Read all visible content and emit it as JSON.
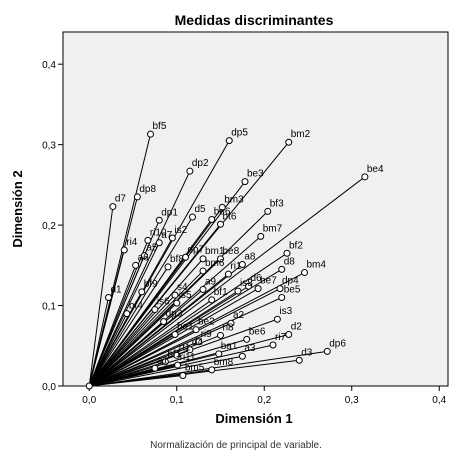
{
  "chart_data": {
    "type": "scatter",
    "title": "Medidas discriminantes",
    "xlabel": "Dimensión 1",
    "ylabel": "Dimensión 2",
    "footnote": "Normalización de principal de variable.",
    "xlim": [
      -0.03,
      0.41
    ],
    "ylim": [
      0.0,
      0.44
    ],
    "xticks": [
      0.0,
      0.1,
      0.2,
      0.3,
      0.4
    ],
    "yticks": [
      0.0,
      0.1,
      0.2,
      0.3,
      0.4
    ],
    "tick_labels_x": [
      "0,0",
      "0,1",
      "0,2",
      "0,3",
      "0,4"
    ],
    "tick_labels_y": [
      "0,0",
      "0,1",
      "0,2",
      "0,3",
      "0,4"
    ],
    "points": [
      {
        "label": "bf5",
        "x": 0.07,
        "y": 0.313
      },
      {
        "label": "dp5",
        "x": 0.16,
        "y": 0.305
      },
      {
        "label": "bm2",
        "x": 0.228,
        "y": 0.303
      },
      {
        "label": "be4",
        "x": 0.315,
        "y": 0.26
      },
      {
        "label": "dp2",
        "x": 0.115,
        "y": 0.267
      },
      {
        "label": "be3",
        "x": 0.178,
        "y": 0.254
      },
      {
        "label": "dp8",
        "x": 0.055,
        "y": 0.235
      },
      {
        "label": "d7",
        "x": 0.027,
        "y": 0.223
      },
      {
        "label": "bm3",
        "x": 0.152,
        "y": 0.222
      },
      {
        "label": "bf3",
        "x": 0.204,
        "y": 0.217
      },
      {
        "label": "d5",
        "x": 0.118,
        "y": 0.21
      },
      {
        "label": "be6",
        "x": 0.14,
        "y": 0.207
      },
      {
        "label": "dp1",
        "x": 0.08,
        "y": 0.206
      },
      {
        "label": "bt6",
        "x": 0.15,
        "y": 0.201
      },
      {
        "label": "ri10",
        "x": 0.067,
        "y": 0.181
      },
      {
        "label": "bm7",
        "x": 0.196,
        "y": 0.186
      },
      {
        "label": "is2",
        "x": 0.095,
        "y": 0.184
      },
      {
        "label": "a7",
        "x": 0.08,
        "y": 0.178
      },
      {
        "label": "ri4",
        "x": 0.04,
        "y": 0.169
      },
      {
        "label": "bf2",
        "x": 0.226,
        "y": 0.165
      },
      {
        "label": "a5",
        "x": 0.063,
        "y": 0.162
      },
      {
        "label": "dp7",
        "x": 0.11,
        "y": 0.16
      },
      {
        "label": "bm1",
        "x": 0.13,
        "y": 0.158
      },
      {
        "label": "be8",
        "x": 0.15,
        "y": 0.158
      },
      {
        "label": "a8",
        "x": 0.175,
        "y": 0.151
      },
      {
        "label": "a6",
        "x": 0.053,
        "y": 0.15
      },
      {
        "label": "bf8",
        "x": 0.09,
        "y": 0.148
      },
      {
        "label": "bm6",
        "x": 0.13,
        "y": 0.143
      },
      {
        "label": "d8",
        "x": 0.22,
        "y": 0.145
      },
      {
        "label": "bm4",
        "x": 0.246,
        "y": 0.141
      },
      {
        "label": "ri1",
        "x": 0.159,
        "y": 0.139
      },
      {
        "label": "d6",
        "x": 0.182,
        "y": 0.124
      },
      {
        "label": "be7",
        "x": 0.193,
        "y": 0.121
      },
      {
        "label": "dp4",
        "x": 0.218,
        "y": 0.121
      },
      {
        "label": "a9",
        "x": 0.13,
        "y": 0.12
      },
      {
        "label": "is8",
        "x": 0.17,
        "y": 0.118
      },
      {
        "label": "bf9",
        "x": 0.06,
        "y": 0.117
      },
      {
        "label": "s4",
        "x": 0.098,
        "y": 0.113
      },
      {
        "label": "d1",
        "x": 0.022,
        "y": 0.11
      },
      {
        "label": "bf1",
        "x": 0.14,
        "y": 0.107
      },
      {
        "label": "be5",
        "x": 0.22,
        "y": 0.11
      },
      {
        "label": "is5",
        "x": 0.1,
        "y": 0.103
      },
      {
        "label": "is6",
        "x": 0.075,
        "y": 0.095
      },
      {
        "label": "bf4",
        "x": 0.043,
        "y": 0.09
      },
      {
        "label": "is3",
        "x": 0.215,
        "y": 0.083
      },
      {
        "label": "dp3",
        "x": 0.085,
        "y": 0.08
      },
      {
        "label": "a2",
        "x": 0.162,
        "y": 0.078
      },
      {
        "label": "be2",
        "x": 0.122,
        "y": 0.07
      },
      {
        "label": "d2",
        "x": 0.228,
        "y": 0.064
      },
      {
        "label": "ri8",
        "x": 0.15,
        "y": 0.063
      },
      {
        "label": "be1",
        "x": 0.098,
        "y": 0.064
      },
      {
        "label": "be6",
        "x": 0.18,
        "y": 0.058
      },
      {
        "label": "ri9",
        "x": 0.125,
        "y": 0.055
      },
      {
        "label": "ri7",
        "x": 0.21,
        "y": 0.051
      },
      {
        "label": "dp6",
        "x": 0.272,
        "y": 0.043
      },
      {
        "label": "d4",
        "x": 0.115,
        "y": 0.045
      },
      {
        "label": "ba1",
        "x": 0.148,
        "y": 0.04
      },
      {
        "label": "a3",
        "x": 0.175,
        "y": 0.037
      },
      {
        "label": "d3",
        "x": 0.24,
        "y": 0.032
      },
      {
        "label": "rt1",
        "x": 0.1,
        "y": 0.038
      },
      {
        "label": "bf1",
        "x": 0.087,
        "y": 0.03
      },
      {
        "label": "bm8",
        "x": 0.14,
        "y": 0.02
      },
      {
        "label": "ri11",
        "x": 0.101,
        "y": 0.026
      },
      {
        "label": "a1",
        "x": 0.075,
        "y": 0.022
      },
      {
        "label": "bm5",
        "x": 0.107,
        "y": 0.013
      }
    ]
  },
  "colors": {
    "plot_background": "#f0f0f0",
    "line": "#000000",
    "marker_fill": "#ffffff",
    "axis": "#000000"
  }
}
